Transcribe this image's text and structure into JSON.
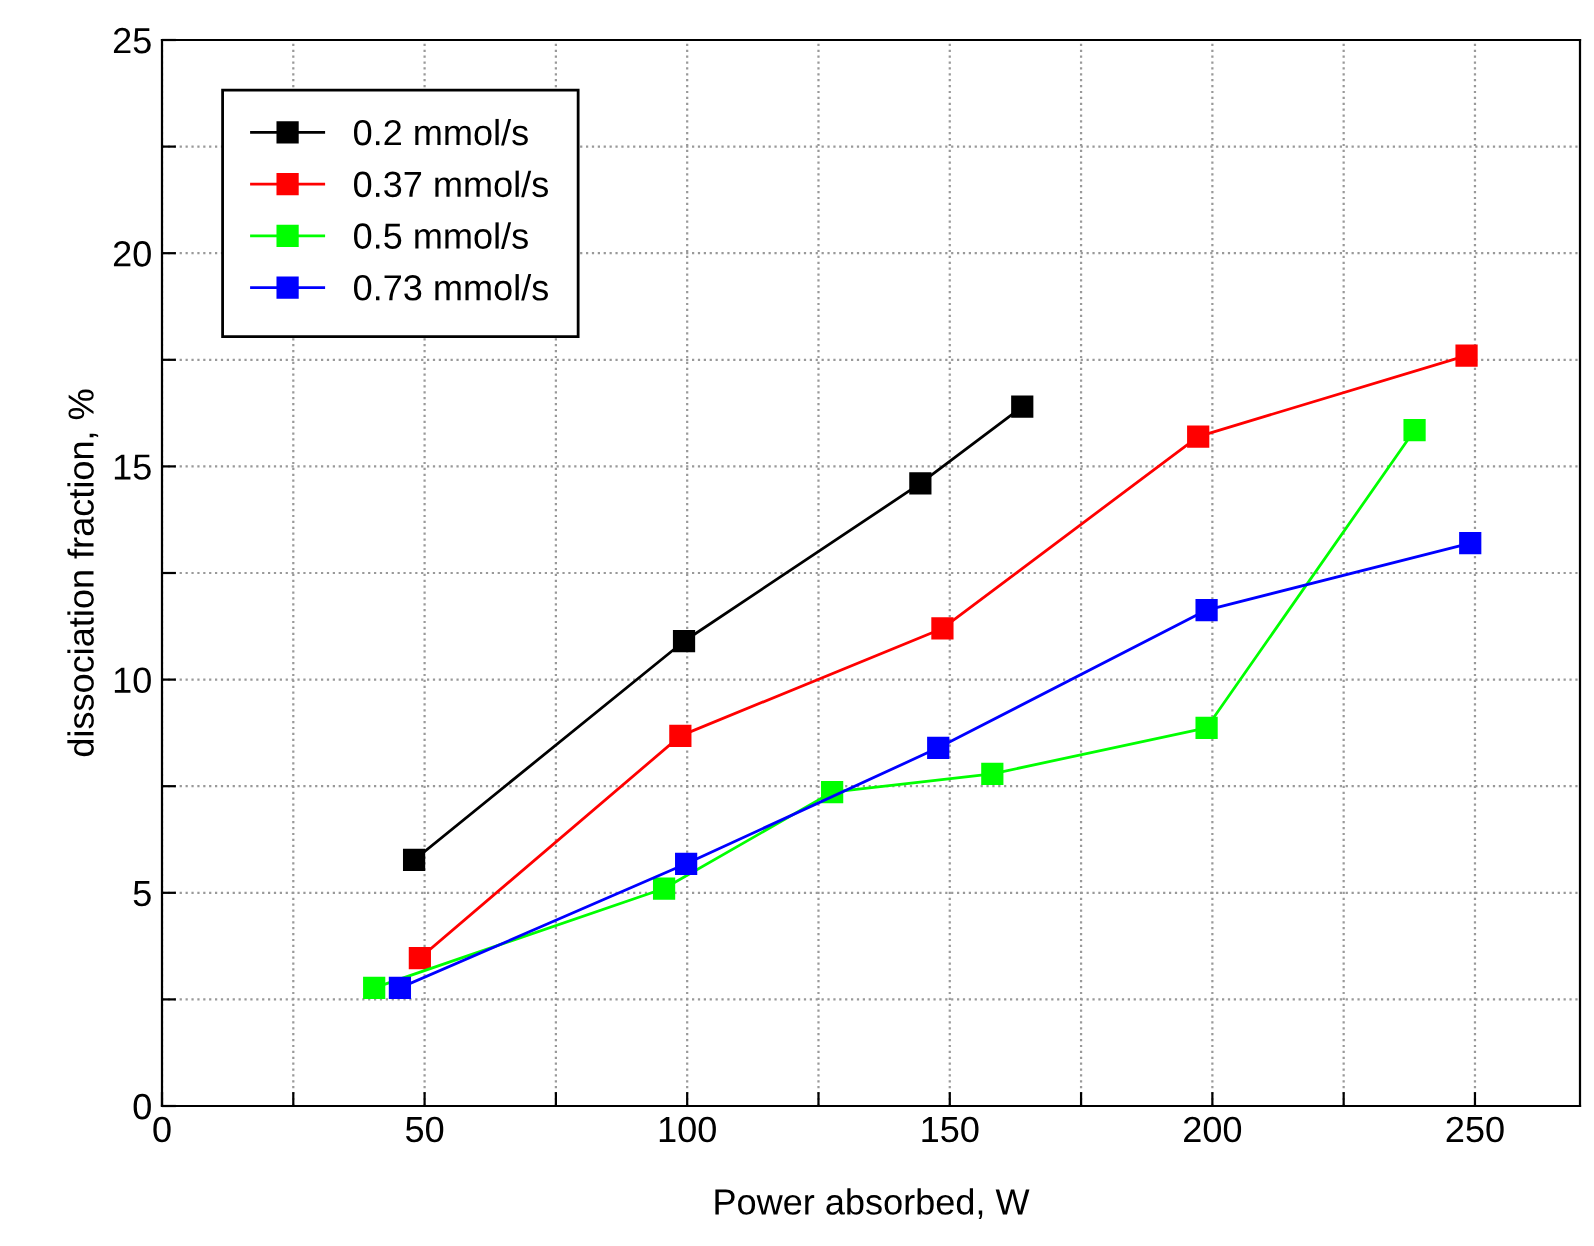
{
  "chart_data": {
    "type": "line",
    "xlabel": "Power absorbed, W",
    "ylabel": "dissociation fraction, %",
    "xlim": [
      0,
      270
    ],
    "ylim": [
      0,
      25
    ],
    "xticks": [
      0,
      {
        "value": 25,
        "label": null
      },
      50,
      {
        "value": 75,
        "label": null
      },
      100,
      {
        "value": 125,
        "label": null
      },
      150,
      {
        "value": 175,
        "label": null
      },
      200,
      {
        "value": 225,
        "label": null
      },
      250
    ],
    "yticks": [
      0,
      {
        "value": 2.5,
        "label": null
      },
      5,
      {
        "value": 7.5,
        "label": null
      },
      10,
      {
        "value": 12.5,
        "label": null
      },
      15,
      {
        "value": 17.5,
        "label": null
      },
      20,
      {
        "value": 22.5,
        "label": null
      },
      25
    ],
    "grid": true,
    "legend": "top left",
    "marker": "square",
    "line_style": "solid",
    "series": [
      {
        "name": "0.2 mmol/s",
        "color": "#000000",
        "x": [
          48,
          99.4,
          144.4,
          163.8
        ],
        "values": [
          5.77,
          10.9,
          14.6,
          16.4
        ]
      },
      {
        "name": "0.37 mmol/s",
        "color": "#ff0000",
        "x": [
          49.1,
          98.7,
          148.6,
          197.3,
          248.4
        ],
        "values": [
          3.47,
          8.68,
          11.2,
          15.7,
          17.6
        ]
      },
      {
        "name": "0.5 mmol/s",
        "color": "#00ff00",
        "x": [
          40.4,
          95.6,
          127.6,
          158.1,
          198.9,
          238.5
        ],
        "values": [
          2.77,
          5.1,
          7.36,
          7.79,
          8.87,
          15.85
        ]
      },
      {
        "name": "0.73 mmol/s",
        "color": "#0000ff",
        "x": [
          45.3,
          99.8,
          147.8,
          198.9,
          249.1
        ],
        "values": [
          2.77,
          5.68,
          8.4,
          11.63,
          13.2
        ]
      }
    ]
  }
}
